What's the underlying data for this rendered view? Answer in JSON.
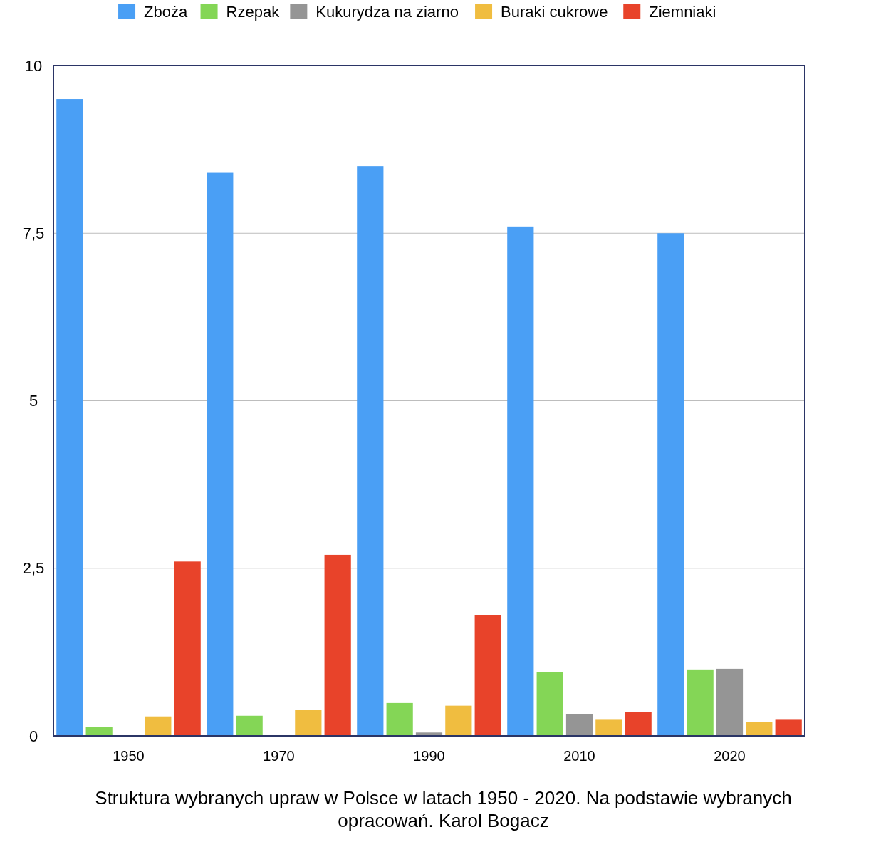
{
  "chart_data": {
    "type": "bar",
    "title": "Struktura wybranych upraw w Polsce w latach 1950 - 2020. Na podstawie wybranych opracowań. Karol Bogacz",
    "categories": [
      "1950",
      "1970",
      "1990",
      "2010",
      "2020"
    ],
    "series": [
      {
        "name": "Zboża",
        "color": "#4a9ff5",
        "values": [
          9.5,
          8.4,
          8.5,
          7.6,
          7.5
        ]
      },
      {
        "name": "Rzepak",
        "color": "#84d656",
        "values": [
          0.13,
          0.3,
          0.49,
          0.95,
          0.99
        ]
      },
      {
        "name": "Kukurydza na ziarno",
        "color": "#959595",
        "values": [
          0,
          0,
          0.05,
          0.32,
          1.0
        ]
      },
      {
        "name": "Buraki cukrowe",
        "color": "#f0bd40",
        "values": [
          0.29,
          0.39,
          0.45,
          0.24,
          0.21
        ]
      },
      {
        "name": "Ziemniaki",
        "color": "#e8432a",
        "values": [
          2.6,
          2.7,
          1.8,
          0.36,
          0.24
        ]
      }
    ],
    "ylim": [
      0,
      10
    ],
    "yticks": [
      0,
      {
        "value": 2.5,
        "label": "2,5"
      },
      5,
      {
        "value": 7.5,
        "label": "7,5"
      },
      10
    ],
    "grid": "y",
    "legend": "top"
  }
}
